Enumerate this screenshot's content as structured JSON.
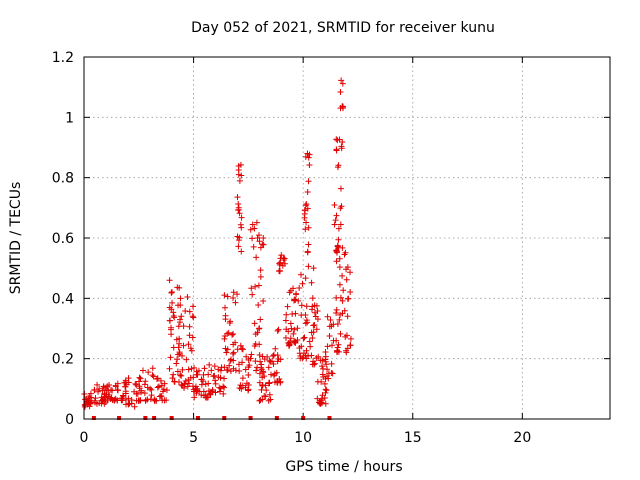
{
  "chart_data": {
    "type": "scatter",
    "title": "Day 052 of 2021, SRMTID for receiver kunu",
    "xlabel": "GPS time / hours",
    "ylabel": "SRMTID / TECUs",
    "xlim": [
      0,
      24
    ],
    "ylim": [
      0,
      1.2
    ],
    "x_ticks": [
      0,
      5,
      10,
      15,
      20
    ],
    "y_ticks": [
      0,
      0.2,
      0.4,
      0.6,
      0.8,
      1,
      1.2
    ],
    "x_tick_labels": [
      "0",
      "5",
      "10",
      "15",
      "20"
    ],
    "y_tick_labels": [
      "0",
      "0.2",
      "0.4",
      "0.6",
      "0.8",
      "1",
      "1.2"
    ],
    "grid": true,
    "marker": "+",
    "color": "#e00000",
    "clusters": [
      {
        "x0": 0.0,
        "x1": 0.35,
        "ymin": 0.04,
        "ymax": 0.1,
        "n": 22
      },
      {
        "x0": 0.4,
        "x1": 1.0,
        "ymin": 0.05,
        "ymax": 0.12,
        "n": 28
      },
      {
        "x0": 1.0,
        "x1": 1.6,
        "ymin": 0.06,
        "ymax": 0.13,
        "n": 24
      },
      {
        "x0": 1.6,
        "x1": 2.4,
        "ymin": 0.04,
        "ymax": 0.14,
        "n": 30
      },
      {
        "x0": 2.4,
        "x1": 3.2,
        "ymin": 0.06,
        "ymax": 0.17,
        "n": 30
      },
      {
        "x0": 3.2,
        "x1": 3.8,
        "ymin": 0.06,
        "ymax": 0.14,
        "n": 20
      },
      {
        "x0": 3.9,
        "x1": 4.4,
        "ymin": 0.12,
        "ymax": 0.46,
        "n": 40
      },
      {
        "x0": 4.4,
        "x1": 5.0,
        "ymin": 0.1,
        "ymax": 0.41,
        "n": 34
      },
      {
        "x0": 5.0,
        "x1": 5.7,
        "ymin": 0.07,
        "ymax": 0.18,
        "n": 34
      },
      {
        "x0": 5.7,
        "x1": 6.4,
        "ymin": 0.08,
        "ymax": 0.18,
        "n": 26
      },
      {
        "x0": 6.4,
        "x1": 7.0,
        "ymin": 0.15,
        "ymax": 0.42,
        "n": 34
      },
      {
        "x0": 7.0,
        "x1": 7.2,
        "ymin": 0.55,
        "ymax": 0.89,
        "n": 20
      },
      {
        "x0": 7.0,
        "x1": 7.6,
        "ymin": 0.09,
        "ymax": 0.26,
        "n": 24
      },
      {
        "x0": 7.6,
        "x1": 8.2,
        "ymin": 0.15,
        "ymax": 0.66,
        "n": 40
      },
      {
        "x0": 8.0,
        "x1": 8.6,
        "ymin": 0.06,
        "ymax": 0.22,
        "n": 30
      },
      {
        "x0": 8.6,
        "x1": 9.0,
        "ymin": 0.12,
        "ymax": 0.33,
        "n": 20
      },
      {
        "x0": 8.9,
        "x1": 9.2,
        "ymin": 0.49,
        "ymax": 0.56,
        "n": 14
      },
      {
        "x0": 9.2,
        "x1": 9.8,
        "ymin": 0.24,
        "ymax": 0.44,
        "n": 34
      },
      {
        "x0": 9.8,
        "x1": 10.2,
        "ymin": 0.2,
        "ymax": 0.48,
        "n": 24
      },
      {
        "x0": 10.05,
        "x1": 10.3,
        "ymin": 0.55,
        "ymax": 0.9,
        "n": 20
      },
      {
        "x0": 10.2,
        "x1": 10.7,
        "ymin": 0.18,
        "ymax": 0.55,
        "n": 28
      },
      {
        "x0": 10.6,
        "x1": 11.1,
        "ymin": 0.05,
        "ymax": 0.22,
        "n": 28
      },
      {
        "x0": 11.0,
        "x1": 11.4,
        "ymin": 0.12,
        "ymax": 0.35,
        "n": 20
      },
      {
        "x0": 11.4,
        "x1": 11.8,
        "ymin": 0.55,
        "ymax": 0.95,
        "n": 26
      },
      {
        "x0": 11.5,
        "x1": 12.2,
        "ymin": 0.22,
        "ymax": 0.6,
        "n": 44
      },
      {
        "x0": 11.7,
        "x1": 11.85,
        "ymin": 1.03,
        "ymax": 1.14,
        "n": 8
      }
    ],
    "baseline_marks_x": [
      0.45,
      1.6,
      2.8,
      3.2,
      4.0,
      5.2,
      6.4,
      7.6,
      8.8,
      10.0,
      11.2
    ]
  }
}
